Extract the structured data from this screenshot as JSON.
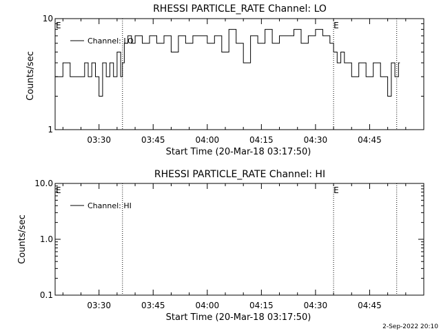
{
  "chart_data": [
    {
      "type": "line",
      "title": "RHESSI PARTICLE_RATE Channel: LO",
      "xlabel": "Start Time (20-Mar-18 03:17:50)",
      "ylabel": "Counts/sec",
      "yscale": "log",
      "ylim": [
        1,
        10
      ],
      "yticks": [
        1,
        10
      ],
      "ytick_labels": [
        "1",
        "10"
      ],
      "xlim": [
        "03:17:50",
        "05:00:00"
      ],
      "xticks": [
        "03:30",
        "03:45",
        "04:00",
        "04:15",
        "04:30",
        "04:45"
      ],
      "vlines": [
        "03:36:30",
        "04:35:00",
        "04:52:30"
      ],
      "markers": [
        {
          "text": "E",
          "at": "03:17:50"
        },
        {
          "text": "E",
          "at": "04:35:00"
        }
      ],
      "legend": "top-left",
      "series": [
        {
          "name": "Channel: LO",
          "x": [
            "03:17:50",
            "03:20:00",
            "03:22:00",
            "03:24:00",
            "03:26:00",
            "03:27:00",
            "03:28:00",
            "03:29:00",
            "03:30:00",
            "03:31:00",
            "03:32:00",
            "03:33:00",
            "03:34:00",
            "03:35:00",
            "03:36:00",
            "03:36:30",
            "03:37:00",
            "03:38:00",
            "03:39:00",
            "03:40:00",
            "03:42:00",
            "03:44:00",
            "03:46:00",
            "03:48:00",
            "03:50:00",
            "03:52:00",
            "03:54:00",
            "03:56:00",
            "03:58:00",
            "04:00:00",
            "04:02:00",
            "04:04:00",
            "04:06:00",
            "04:08:00",
            "04:10:00",
            "04:12:00",
            "04:14:00",
            "04:16:00",
            "04:18:00",
            "04:20:00",
            "04:22:00",
            "04:24:00",
            "04:26:00",
            "04:28:00",
            "04:30:00",
            "04:32:00",
            "04:34:00",
            "04:35:00",
            "04:36:00",
            "04:37:00",
            "04:38:00",
            "04:40:00",
            "04:42:00",
            "04:44:00",
            "04:46:00",
            "04:48:00",
            "04:50:00",
            "04:51:00",
            "04:52:00",
            "04:53:00"
          ],
          "values": [
            3.0,
            4.0,
            3.0,
            3.0,
            4.0,
            3.0,
            4.0,
            3.0,
            2.0,
            4.0,
            3.0,
            4.0,
            3.0,
            5.0,
            3.0,
            4.0,
            6.0,
            7.0,
            6.0,
            7.0,
            6.0,
            7.0,
            6.0,
            7.0,
            5.0,
            7.0,
            6.0,
            7.0,
            7.0,
            6.0,
            7.0,
            5.0,
            8.0,
            6.0,
            4.0,
            7.0,
            6.0,
            8.0,
            6.0,
            7.0,
            7.0,
            8.0,
            6.0,
            7.0,
            8.0,
            7.0,
            6.0,
            5.0,
            4.0,
            5.0,
            4.0,
            3.0,
            4.0,
            3.0,
            4.0,
            3.0,
            2.0,
            4.0,
            3.0,
            4.0
          ]
        }
      ]
    },
    {
      "type": "line",
      "title": "RHESSI PARTICLE_RATE Channel: HI",
      "xlabel": "Start Time (20-Mar-18 03:17:50)",
      "ylabel": "Counts/sec",
      "yscale": "log",
      "ylim": [
        0.1,
        10
      ],
      "yticks": [
        0.1,
        1,
        10
      ],
      "ytick_labels": [
        "0.1",
        "1.0",
        "10.0"
      ],
      "xlim": [
        "03:17:50",
        "05:00:00"
      ],
      "xticks": [
        "03:30",
        "03:45",
        "04:00",
        "04:15",
        "04:30",
        "04:45"
      ],
      "vlines": [
        "03:36:30",
        "04:35:00",
        "04:52:30"
      ],
      "markers": [
        {
          "text": "E",
          "at": "03:17:50"
        },
        {
          "text": "E",
          "at": "04:35:00"
        }
      ],
      "legend": "top-left",
      "series": [
        {
          "name": "Channel: HI",
          "x": [],
          "values": []
        }
      ]
    }
  ],
  "footer": {
    "timestamp": "2-Sep-2022 20:10"
  }
}
